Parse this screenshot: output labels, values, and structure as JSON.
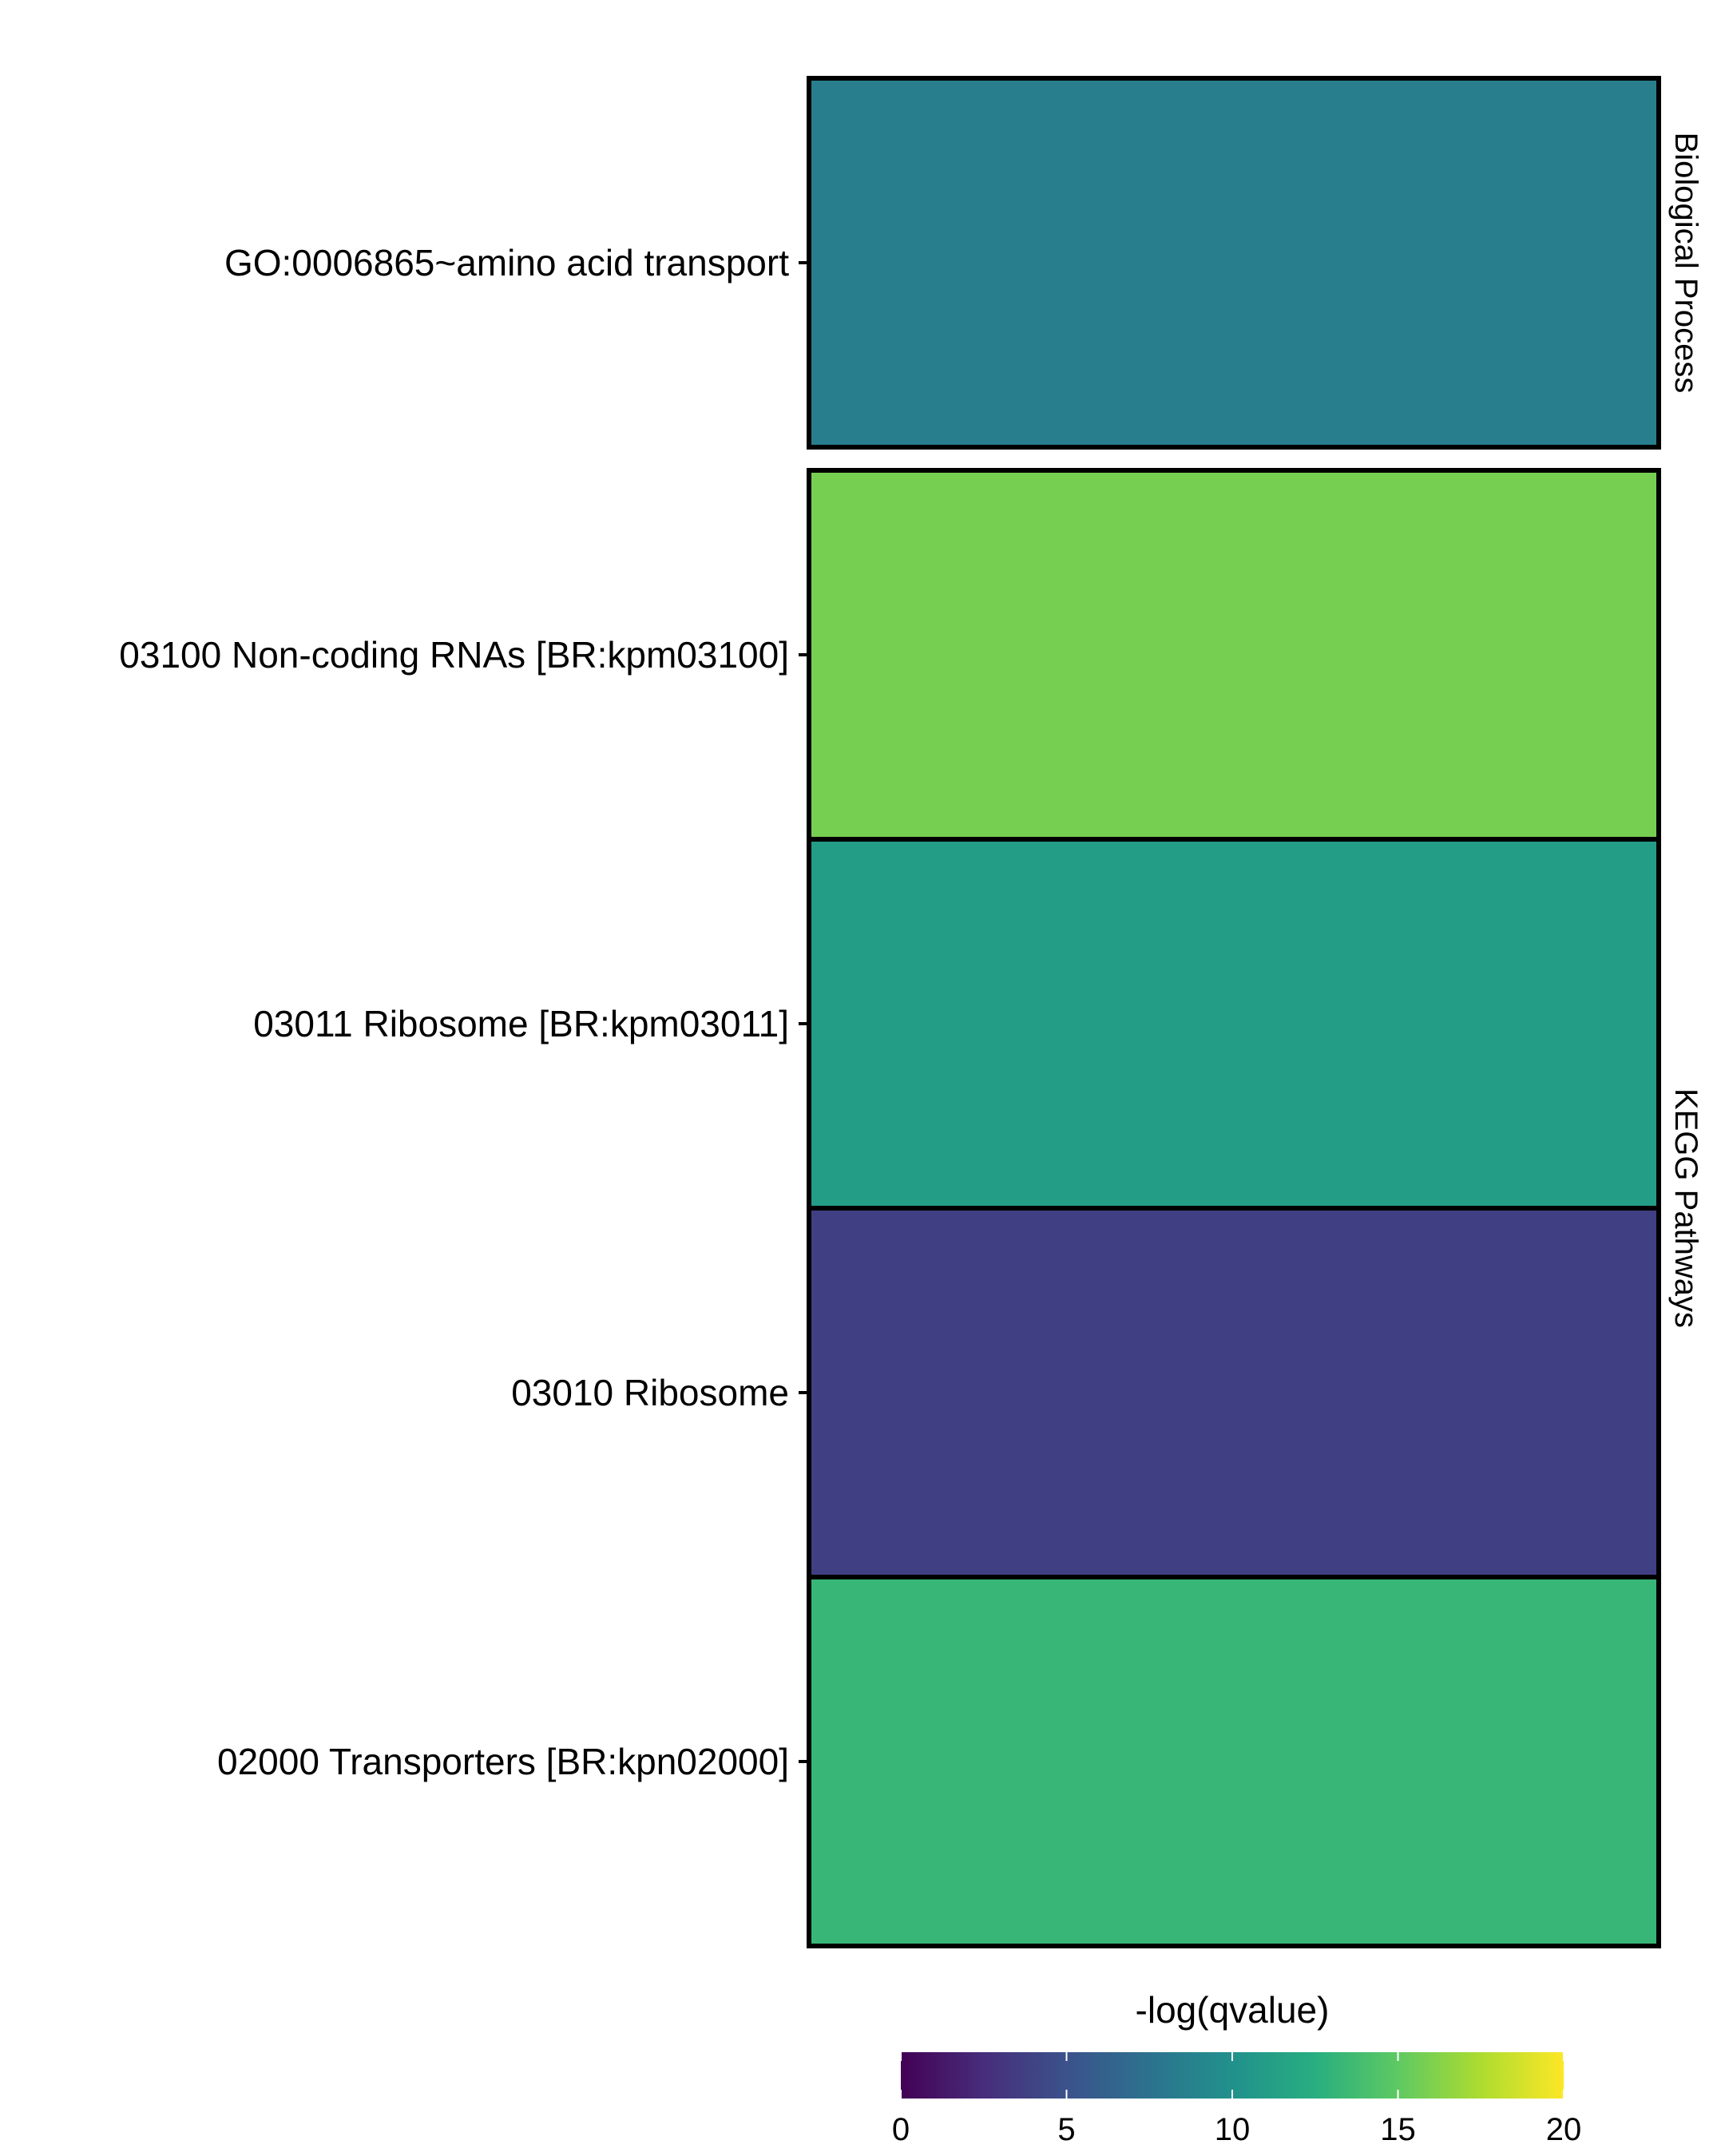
{
  "chart_data": {
    "type": "heatmap",
    "title": "",
    "xlabel": "",
    "ylabel": "",
    "facets": [
      {
        "name": "Biological Process",
        "rows": [
          {
            "label": "GO:0006865~amino acid transport",
            "value": 8.5
          }
        ]
      },
      {
        "name": "KEGG Pathways",
        "rows": [
          {
            "label": "03100 Non-coding RNAs [BR:kpm03100]",
            "value": 15.8
          },
          {
            "label": "03011 Ribosome [BR:kpm03011]",
            "value": 11.0
          },
          {
            "label": "03010 Ribosome",
            "value": 3.7
          },
          {
            "label": "02000 Transporters [BR:kpn02000]",
            "value": 13.2
          }
        ]
      }
    ],
    "legend": {
      "title": "-log(qvalue)",
      "min": 0,
      "max": 20,
      "ticks": [
        "0",
        "5",
        "10",
        "15",
        "20"
      ],
      "placement": "bottom",
      "colormap": "viridis"
    }
  }
}
